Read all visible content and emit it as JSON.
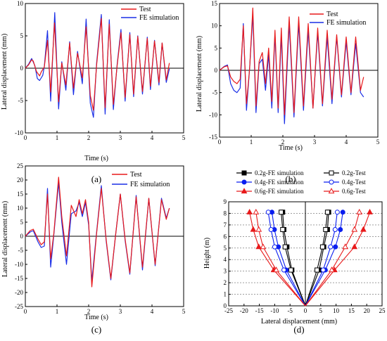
{
  "chart_data": [
    {
      "id": "a",
      "type": "line",
      "panel_label": "(a)",
      "xlabel": "Time (s)",
      "ylabel": "Lateral displacement (mm)",
      "xlim": [
        0,
        5
      ],
      "ylim": [
        -10,
        10
      ],
      "xticks": [
        0,
        1,
        2,
        3,
        4,
        5
      ],
      "yticks": [
        -10,
        -5,
        0,
        5,
        10
      ],
      "grid": false,
      "legend_position": "top-right",
      "series": [
        {
          "name": "Test",
          "color": "#e8191a",
          "x": [
            0,
            0.1,
            0.2,
            0.25,
            0.35,
            0.45,
            0.5,
            0.6,
            0.7,
            0.8,
            0.92,
            1.05,
            1.15,
            1.28,
            1.4,
            1.52,
            1.65,
            1.8,
            1.92,
            2.05,
            2.15,
            2.25,
            2.4,
            2.52,
            2.65,
            2.78,
            2.9,
            3.02,
            3.15,
            3.3,
            3.42,
            3.55,
            3.7,
            3.85,
            3.95,
            4.08,
            4.22,
            4.32,
            4.45,
            4.55
          ],
          "values": [
            0,
            0.5,
            1.3,
            1.1,
            -0.5,
            -1.2,
            -0.6,
            0.2,
            4.3,
            -3.7,
            7.0,
            -5.2,
            0.8,
            -2.6,
            3.9,
            -3.1,
            2.3,
            -1.5,
            6.4,
            -4.2,
            -6.5,
            0.5,
            7.7,
            -6.1,
            6.8,
            -5.6,
            0.4,
            5.5,
            -4.5,
            5.2,
            -4.0,
            4.9,
            -3.6,
            4.6,
            -2.8,
            4.2,
            -2.2,
            3.9,
            -1.8,
            0.8
          ]
        },
        {
          "name": "FE simulation",
          "color": "#1a2ee6",
          "x": [
            0,
            0.1,
            0.2,
            0.3,
            0.38,
            0.45,
            0.55,
            0.6,
            0.7,
            0.8,
            0.93,
            1.05,
            1.15,
            1.28,
            1.4,
            1.52,
            1.65,
            1.8,
            1.92,
            2.05,
            2.15,
            2.25,
            2.4,
            2.52,
            2.65,
            2.78,
            2.9,
            3.02,
            3.15,
            3.3,
            3.42,
            3.55,
            3.7,
            3.85,
            3.95,
            4.08,
            4.22,
            4.32,
            4.45,
            4.55
          ],
          "values": [
            0,
            0.6,
            1.5,
            0.4,
            -1.6,
            -1.9,
            -1.1,
            0.3,
            5.8,
            -5.1,
            8.6,
            -6.3,
            1.0,
            -3.4,
            4.1,
            -4.1,
            2.6,
            -2.4,
            7.6,
            -5.4,
            -7.6,
            0.8,
            8.3,
            -7.1,
            7.5,
            -6.4,
            0.6,
            6.0,
            -5.1,
            5.5,
            -4.4,
            5.0,
            -4.0,
            4.8,
            -3.3,
            4.3,
            -2.6,
            3.9,
            -2.2,
            -0.1
          ]
        }
      ]
    },
    {
      "id": "b",
      "type": "line",
      "panel_label": "(b)",
      "xlabel": "Time (s)",
      "ylabel": "Lateral displacement (mm)",
      "xlim": [
        0,
        5
      ],
      "ylim": [
        -15,
        15
      ],
      "xticks": [
        0,
        1,
        2,
        3,
        4,
        5
      ],
      "yticks": [
        -15,
        -10,
        -5,
        0,
        5,
        10,
        15
      ],
      "grid": false,
      "legend_position": "top-right",
      "series": [
        {
          "name": "Test",
          "color": "#e8191a",
          "x": [
            0,
            0.15,
            0.25,
            0.35,
            0.45,
            0.55,
            0.65,
            0.75,
            0.85,
            0.95,
            1.05,
            1.15,
            1.25,
            1.35,
            1.45,
            1.55,
            1.65,
            1.75,
            1.85,
            1.95,
            2.05,
            2.2,
            2.35,
            2.5,
            2.65,
            2.8,
            2.95,
            3.1,
            3.25,
            3.4,
            3.55,
            3.7,
            3.85,
            4.0,
            4.15,
            4.3,
            4.45,
            4.55
          ],
          "values": [
            0,
            0.8,
            1.0,
            -1.5,
            -2.5,
            -3.0,
            -2.0,
            10.0,
            -7.5,
            0.5,
            14.0,
            -8.0,
            2.0,
            4.0,
            -3.0,
            5.0,
            -7.0,
            9.0,
            -8.5,
            9.5,
            -10.0,
            12.0,
            -9.5,
            12.0,
            -8.0,
            10.5,
            -8.5,
            9.5,
            -7.5,
            9.0,
            -6.5,
            8.0,
            -5.5,
            7.5,
            -5.0,
            7.5,
            -4.5,
            -1.5
          ]
        },
        {
          "name": "FE simulation",
          "color": "#1a2ee6",
          "x": [
            0,
            0.15,
            0.25,
            0.35,
            0.45,
            0.55,
            0.65,
            0.75,
            0.85,
            0.95,
            1.05,
            1.15,
            1.25,
            1.35,
            1.45,
            1.55,
            1.65,
            1.75,
            1.85,
            1.95,
            2.05,
            2.2,
            2.35,
            2.5,
            2.65,
            2.8,
            2.95,
            3.1,
            3.25,
            3.4,
            3.55,
            3.7,
            3.85,
            4.0,
            4.15,
            4.3,
            4.45,
            4.55
          ],
          "values": [
            0,
            0.9,
            1.2,
            -3.0,
            -4.5,
            -5.0,
            -4.0,
            10.5,
            -9.0,
            0.5,
            12.5,
            -9.5,
            1.5,
            2.5,
            -4.5,
            3.5,
            -8.5,
            8.0,
            -9.5,
            8.0,
            -12.0,
            10.5,
            -10.5,
            10.5,
            -9.0,
            9.0,
            -8.5,
            8.5,
            -8.0,
            7.5,
            -7.5,
            7.5,
            -6.0,
            6.5,
            -5.5,
            6.0,
            -5.0,
            -6.0
          ]
        }
      ]
    },
    {
      "id": "c",
      "type": "line",
      "panel_label": "(c)",
      "xlabel": "Time (s)",
      "ylabel": "Lateral displacement (mm)",
      "xlim": [
        0,
        5
      ],
      "ylim": [
        -25,
        25
      ],
      "xticks": [
        0,
        1,
        2,
        3,
        4,
        5
      ],
      "yticks": [
        -25,
        -20,
        -15,
        -10,
        -5,
        0,
        5,
        10,
        15,
        20,
        25
      ],
      "grid": false,
      "legend_position": "top-right",
      "series": [
        {
          "name": "Test",
          "color": "#e8191a",
          "x": [
            0,
            0.15,
            0.25,
            0.4,
            0.5,
            0.6,
            0.7,
            0.8,
            0.9,
            1.05,
            1.15,
            1.3,
            1.45,
            1.6,
            1.7,
            1.8,
            1.9,
            2.0,
            2.1,
            2.25,
            2.4,
            2.55,
            2.7,
            2.85,
            3.0,
            3.15,
            3.3,
            3.5,
            3.7,
            3.9,
            4.1,
            4.3,
            4.45,
            4.55
          ],
          "values": [
            0,
            2.0,
            2.5,
            -1.0,
            -3.0,
            -2.0,
            15.0,
            -8.0,
            1.0,
            21.0,
            7.0,
            -7.0,
            11.0,
            7.0,
            13.0,
            8.0,
            13.0,
            5.0,
            -18.0,
            1.0,
            17.0,
            -1.0,
            -15.0,
            0.5,
            15.0,
            -1.0,
            -13.0,
            14.0,
            -11.0,
            13.5,
            -10.0,
            13.0,
            6.0,
            10.0
          ]
        },
        {
          "name": "FE simulation",
          "color": "#1a2ee6",
          "x": [
            0,
            0.15,
            0.25,
            0.4,
            0.5,
            0.6,
            0.7,
            0.8,
            0.9,
            1.05,
            1.15,
            1.3,
            1.45,
            1.6,
            1.7,
            1.8,
            1.9,
            2.0,
            2.1,
            2.25,
            2.4,
            2.55,
            2.7,
            2.85,
            3.0,
            3.15,
            3.3,
            3.5,
            3.7,
            3.9,
            4.1,
            4.3,
            4.45,
            4.55
          ],
          "values": [
            0,
            1.5,
            2.0,
            -2.0,
            -4.0,
            -3.5,
            17.0,
            -11.0,
            0.5,
            19.0,
            5.0,
            -10.0,
            8.0,
            9.0,
            12.0,
            7.0,
            12.0,
            4.0,
            -16.0,
            1.5,
            18.0,
            -1.5,
            -15.5,
            0.5,
            15.0,
            -1.5,
            -13.5,
            14.5,
            -12.0,
            13.5,
            -10.5,
            13.5,
            6.5,
            10.0
          ]
        }
      ]
    },
    {
      "id": "d",
      "type": "line",
      "panel_label": "(d)",
      "xlabel": "Lateral displacement (mm)",
      "ylabel": "Height (m)",
      "xlim": [
        -25,
        25
      ],
      "ylim": [
        0,
        9
      ],
      "xticks": [
        -25,
        -20,
        -15,
        -10,
        -5,
        0,
        5,
        10,
        15,
        20,
        25
      ],
      "yticks": [
        0,
        1,
        2,
        3,
        4,
        5,
        6,
        7,
        8,
        9
      ],
      "grid": "dashed horizontal",
      "legend_position": "top, above plot, 3 rows x 2 columns",
      "heights": [
        0,
        3.1,
        5.1,
        6.6,
        8.1
      ],
      "series": [
        {
          "name": "0.2g-FE simulation",
          "color": "#000000",
          "marker": "square-filled",
          "left": [
            0,
            -4.4,
            -6.0,
            -7.0,
            -7.4
          ],
          "right": [
            0,
            4.5,
            6.0,
            7.2,
            7.6
          ]
        },
        {
          "name": "0.2g-Test",
          "color": "#000000",
          "marker": "square-open",
          "left": [
            0,
            -4.7,
            -6.6,
            -7.4,
            -7.9
          ],
          "right": [
            0,
            3.8,
            5.6,
            6.6,
            7.2
          ]
        },
        {
          "name": "0.4g-FE simulation",
          "color": "#0a1ef0",
          "marker": "circle-filled",
          "left": [
            0,
            -6.2,
            -8.8,
            -10.1,
            -10.9
          ],
          "right": [
            0,
            6.5,
            9.8,
            11.4,
            12.2
          ]
        },
        {
          "name": "0.4g-Test",
          "color": "#0a1ef0",
          "marker": "circle-open",
          "left": [
            0,
            -7.0,
            -10.0,
            -11.2,
            -12.1
          ],
          "right": [
            0,
            5.8,
            8.2,
            9.7,
            10.4
          ]
        },
        {
          "name": "0.6g-FE simulation",
          "color": "#e8191a",
          "marker": "triangle-filled",
          "left": [
            0,
            -10.3,
            -15.2,
            -17.0,
            -18.2
          ],
          "right": [
            0,
            9.5,
            16.0,
            18.9,
            21.0
          ]
        },
        {
          "name": "0.6g-Test",
          "color": "#e8191a",
          "marker": "triangle-open",
          "left": [
            0,
            -9.5,
            -13.8,
            -15.2,
            -16.1
          ],
          "right": [
            0,
            8.6,
            13.0,
            16.0,
            17.6
          ]
        }
      ]
    }
  ]
}
